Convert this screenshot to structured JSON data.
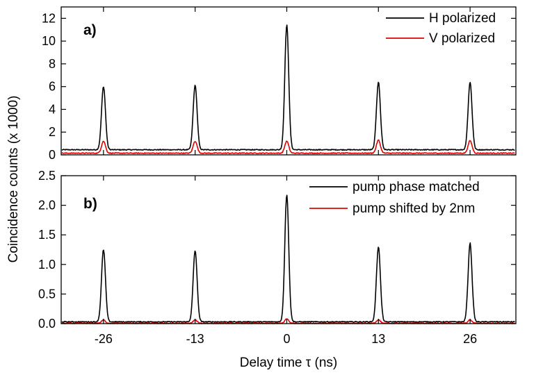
{
  "figure": {
    "ylabel": "Coincidence counts (x 1000)",
    "xlabel": "Delay time τ (ns)"
  },
  "chart_data": [
    {
      "type": "line",
      "panel_label": "a)",
      "xlim": [
        -32,
        32.5
      ],
      "ylim": [
        0,
        13
      ],
      "x_ticks": [
        -26,
        -13,
        0,
        13,
        26
      ],
      "x_tick_labels": [
        "-26",
        "-13",
        "0",
        "13",
        "26"
      ],
      "show_x_tick_labels": false,
      "y_ticks": [
        0,
        2,
        4,
        6,
        8,
        10,
        12
      ],
      "y_tick_labels": [
        "0",
        "2",
        "4",
        "6",
        "8",
        "10",
        "12"
      ],
      "legend_position": "top-right",
      "series": [
        {
          "name": "H polarized",
          "color": "#000000",
          "baseline": 0.45,
          "peaks": [
            {
              "x": -26,
              "height": 6.0
            },
            {
              "x": -13,
              "height": 6.1
            },
            {
              "x": 0,
              "height": 11.4
            },
            {
              "x": 13,
              "height": 6.4
            },
            {
              "x": 26,
              "height": 6.4
            }
          ]
        },
        {
          "name": "V polarized",
          "color": "#e00000",
          "baseline": 0.15,
          "peaks": [
            {
              "x": -26,
              "height": 1.2
            },
            {
              "x": -13,
              "height": 1.2
            },
            {
              "x": 0,
              "height": 1.2
            },
            {
              "x": 13,
              "height": 1.3
            },
            {
              "x": 26,
              "height": 1.25
            }
          ]
        }
      ]
    },
    {
      "type": "line",
      "panel_label": "b)",
      "xlim": [
        -32,
        32.5
      ],
      "ylim": [
        0,
        2.5
      ],
      "x_ticks": [
        -26,
        -13,
        0,
        13,
        26
      ],
      "x_tick_labels": [
        "-26",
        "-13",
        "0",
        "13",
        "26"
      ],
      "show_x_tick_labels": true,
      "y_ticks": [
        0,
        0.5,
        1.0,
        1.5,
        2.0,
        2.5
      ],
      "y_tick_labels": [
        "0.0",
        "0.5",
        "1.0",
        "1.5",
        "2.0",
        "2.5"
      ],
      "legend_position": "top-right",
      "series": [
        {
          "name": "pump phase matched",
          "color": "#000000",
          "baseline": 0.03,
          "peaks": [
            {
              "x": -26,
              "height": 1.25
            },
            {
              "x": -13,
              "height": 1.23
            },
            {
              "x": 0,
              "height": 2.18
            },
            {
              "x": 13,
              "height": 1.3
            },
            {
              "x": 26,
              "height": 1.36
            }
          ]
        },
        {
          "name": "pump shifted by 2nm",
          "color": "#e00000",
          "baseline": 0.005,
          "peaks": [
            {
              "x": -26,
              "height": 0.06
            },
            {
              "x": -13,
              "height": 0.06
            },
            {
              "x": 0,
              "height": 0.08
            },
            {
              "x": 13,
              "height": 0.06
            },
            {
              "x": 26,
              "height": 0.06
            }
          ]
        }
      ]
    }
  ]
}
